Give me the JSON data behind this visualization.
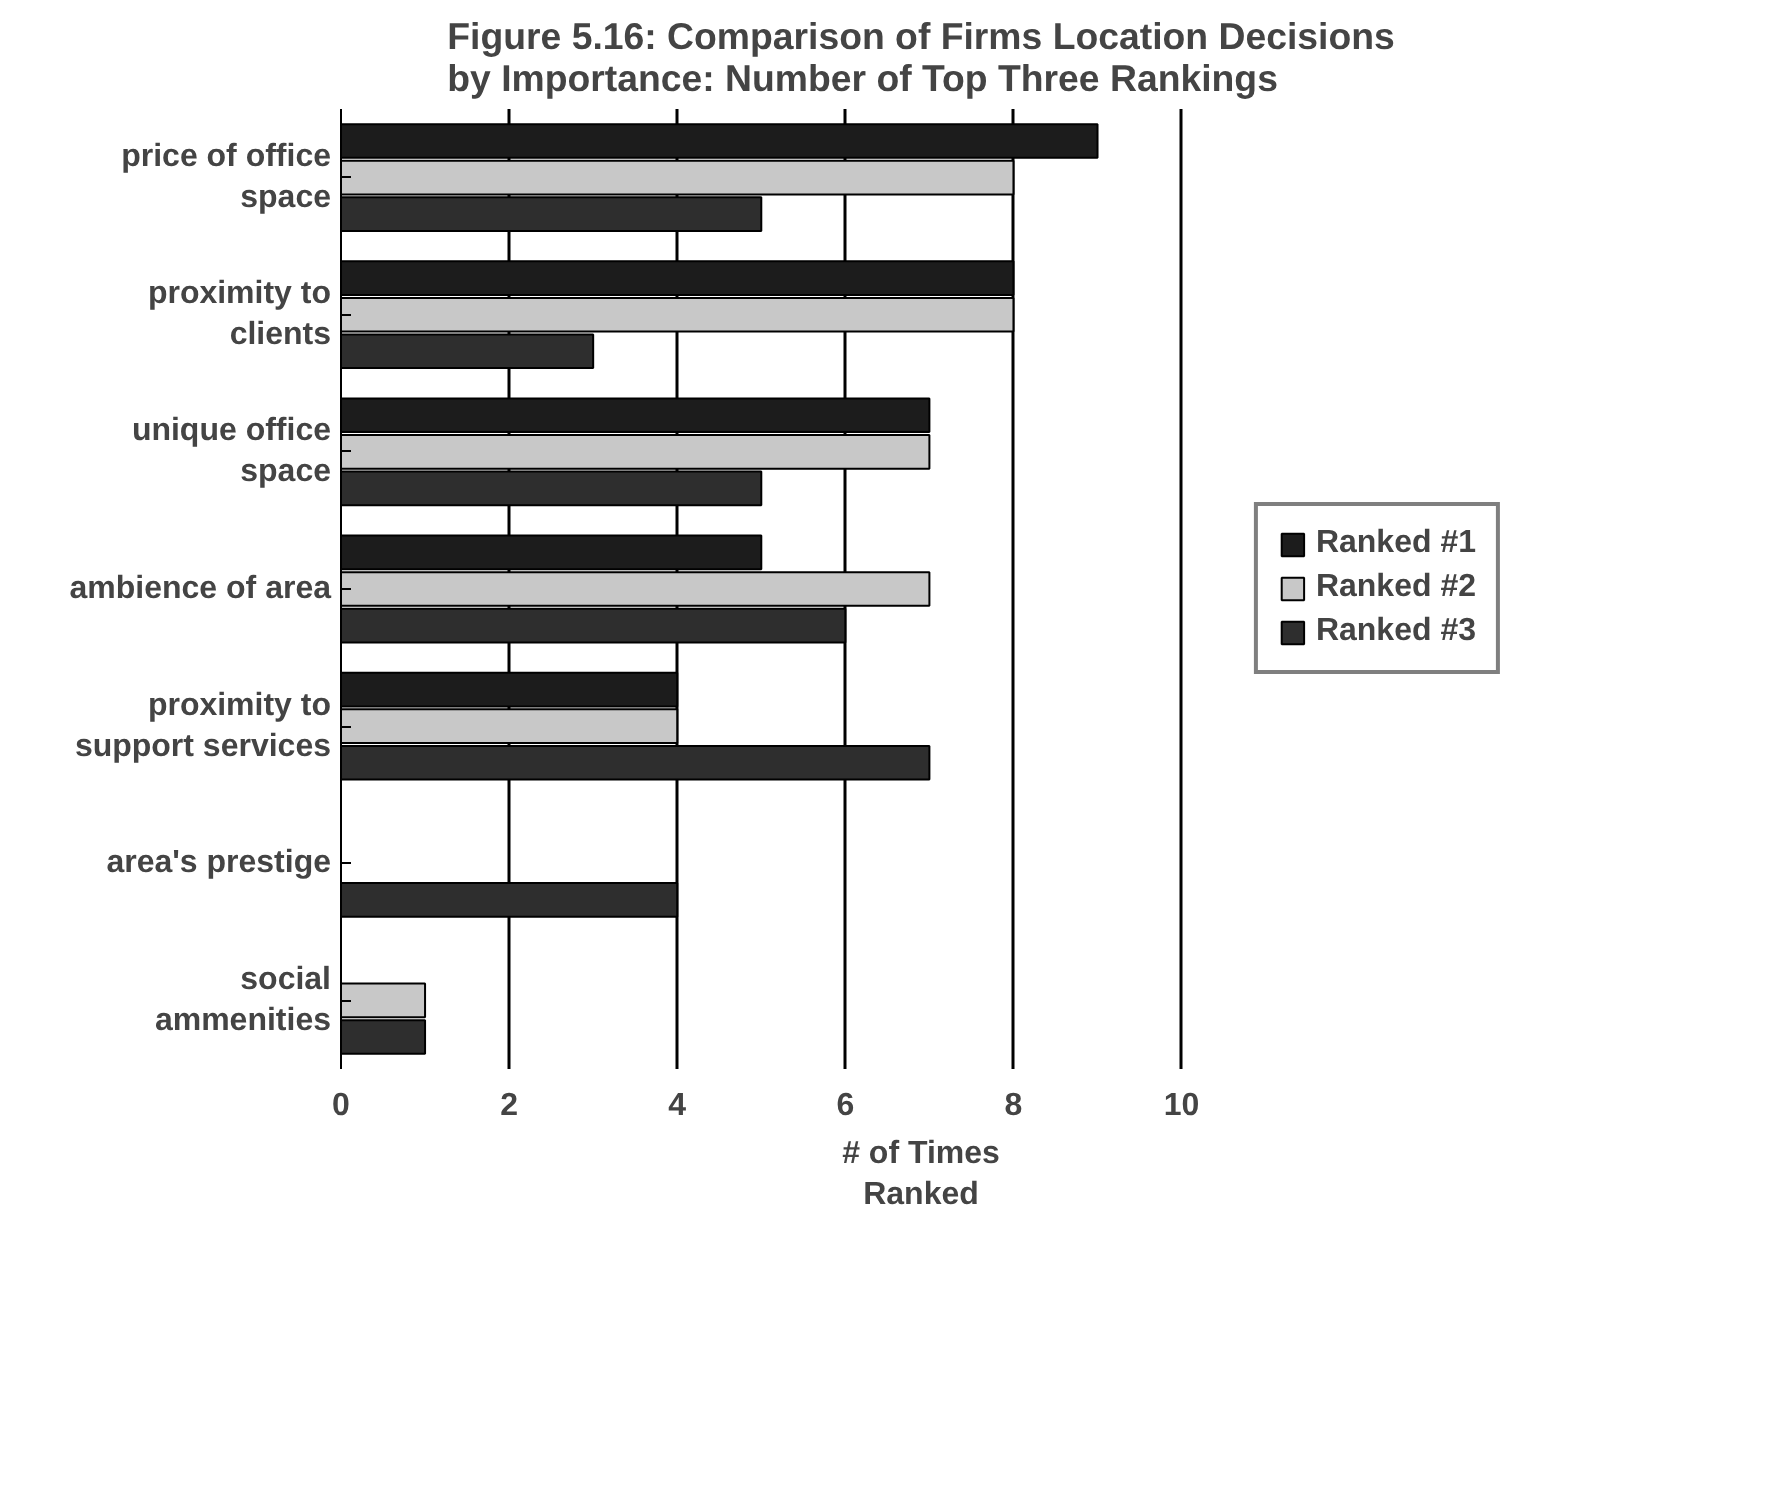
{
  "chart_data": {
    "type": "bar",
    "orientation": "horizontal",
    "title": "Figure 5.16: Comparison of Firms Location Decisions\nby Importance: Number of Top Three Rankings",
    "xlabel": "# of Times\nRanked",
    "categories": [
      "price of office space",
      "proximity to clients",
      "unique office space",
      "ambience of area",
      "proximity to support services",
      "area's prestige",
      "social ammenities"
    ],
    "series": [
      {
        "name": "Ranked #1",
        "color": "#1c1c1c",
        "values": [
          9,
          8,
          7,
          5,
          4,
          0,
          0
        ]
      },
      {
        "name": "Ranked #2",
        "color": "#c8c8c8",
        "values": [
          8,
          8,
          7,
          7,
          4,
          0,
          1
        ]
      },
      {
        "name": "Ranked #3",
        "color": "#2e2e2e",
        "values": [
          5,
          3,
          5,
          6,
          7,
          4,
          1
        ]
      }
    ],
    "xlim": [
      0,
      10
    ],
    "xticks": [
      0,
      2,
      4,
      6,
      8,
      10
    ],
    "grid": "x",
    "legend": "right"
  }
}
